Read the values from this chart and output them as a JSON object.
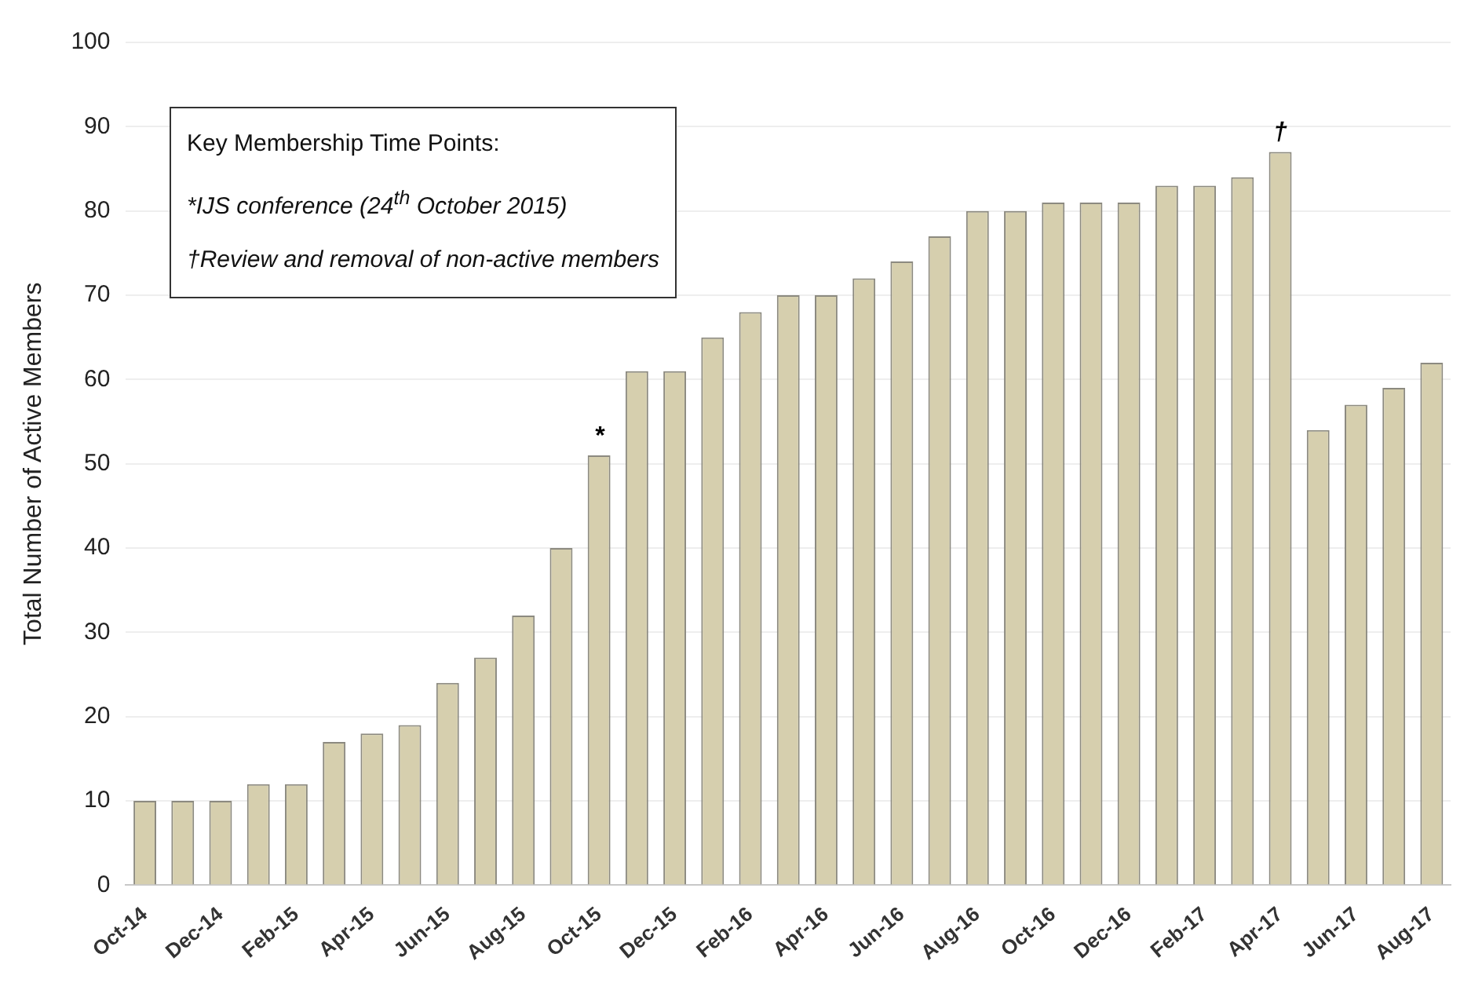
{
  "chart_data": {
    "type": "bar",
    "ylabel": "Total Number of Active Members",
    "categories": [
      "Oct-14",
      null,
      "Dec-14",
      null,
      "Feb-15",
      null,
      "Apr-15",
      null,
      "Jun-15",
      null,
      "Aug-15",
      null,
      "Oct-15",
      null,
      "Dec-15",
      null,
      "Feb-16",
      null,
      "Apr-16",
      null,
      "Jun-16",
      null,
      "Aug-16",
      null,
      "Oct-16",
      null,
      "Dec-16",
      null,
      "Feb-17",
      null,
      "Apr-17",
      null,
      "Jun-17",
      null,
      "Aug-17"
    ],
    "values": [
      10,
      10,
      10,
      12,
      12,
      17,
      18,
      19,
      24,
      27,
      32,
      40,
      51,
      61,
      61,
      65,
      68,
      70,
      70,
      72,
      74,
      77,
      80,
      80,
      81,
      81,
      81,
      83,
      83,
      84,
      87,
      54,
      57,
      59,
      62
    ],
    "color": "#d6cfae",
    "ylim": [
      0,
      100
    ],
    "yticks": [
      0,
      10,
      20,
      30,
      40,
      50,
      60,
      70,
      80,
      90,
      100
    ],
    "grid": "y",
    "annotations": [
      "Key Membership Time Points:",
      "*IJS conference (24$^{th}$ October 2015)",
      "†Review and removal of non-active members",
      {
        "text": "*",
        "x": "Oct-15",
        "y": 51
      },
      {
        "text": "†",
        "x": "Apr-17",
        "y": 87
      }
    ]
  }
}
